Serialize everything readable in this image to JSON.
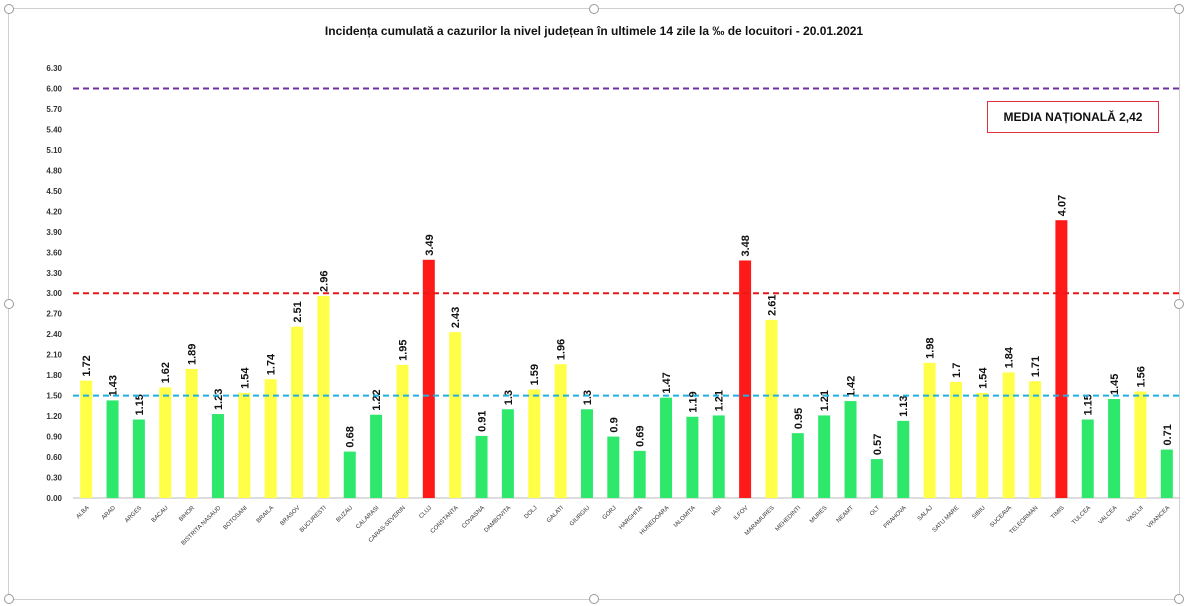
{
  "chart_data": {
    "type": "bar",
    "title": "Incidența cumulată a cazurilor la nivel județean în ultimele 14 zile la ‰ de locuitori - 20.01.2021",
    "xlabel": "",
    "ylabel": "",
    "ylim": [
      0,
      6.3
    ],
    "ytick_step": 0.3,
    "grid": false,
    "categories": [
      "ALBA",
      "ARAD",
      "ARGES",
      "BACAU",
      "BIHOR",
      "BISTRITA NASAUD",
      "BOTOSANI",
      "BRAILA",
      "BRASOV",
      "BUCURESTI",
      "BUZAU",
      "CALARASI",
      "CARAS-SEVERIN",
      "CLUJ",
      "CONSTANTA",
      "COVASNA",
      "DAMBOVITA",
      "DOLJ",
      "GALATI",
      "GIURGIU",
      "GORJ",
      "HARGHITA",
      "HUNEDOARA",
      "IALOMITA",
      "IASI",
      "ILFOV",
      "MARAMURES",
      "MEHEDINTI",
      "MURES",
      "NEAMT",
      "OLT",
      "PRAHOVA",
      "SALAJ",
      "SATU MARE",
      "SIBIU",
      "SUCEAVA",
      "TELEORMAN",
      "TIMIS",
      "TULCEA",
      "VALCEA",
      "VASLUI",
      "VRANCEA"
    ],
    "values": [
      1.72,
      1.43,
      1.15,
      1.62,
      1.89,
      1.23,
      1.54,
      1.74,
      2.51,
      2.96,
      0.68,
      1.22,
      1.95,
      3.49,
      2.43,
      0.91,
      1.3,
      1.59,
      1.96,
      1.3,
      0.9,
      0.69,
      1.47,
      1.19,
      1.21,
      3.48,
      2.61,
      0.95,
      1.21,
      1.42,
      0.57,
      1.13,
      1.98,
      1.7,
      1.54,
      1.84,
      1.71,
      4.07,
      1.15,
      1.45,
      1.56,
      0.71
    ],
    "data_labels": [
      "1.72",
      "1.43",
      "1.15",
      "1.62",
      "1.89",
      "1.23",
      "1.54",
      "1.74",
      "2.51",
      "2.96",
      "0.68",
      "1.22",
      "1.95",
      "3.49",
      "2.43",
      "0.91",
      "1.3",
      "1.59",
      "1.96",
      "1.3",
      "0.9",
      "0.69",
      "1.47",
      "1.19",
      "1.21",
      "3.48",
      "2.61",
      "0.95",
      "1.21",
      "1.42",
      "0.57",
      "1.13",
      "1.98",
      "1.7",
      "1.54",
      "1.84",
      "1.71",
      "4.07",
      "1.15",
      "1.45",
      "1.56",
      "0.71"
    ],
    "color_thresholds": {
      "green_below": 1.5,
      "red_above": 3.0
    },
    "colors": {
      "green": "#2ee86c",
      "yellow": "#ffff47",
      "red": "#ff1a1a"
    },
    "reference_lines": [
      {
        "value": 6.0,
        "color": "#7030a0"
      },
      {
        "value": 3.0,
        "color": "#e81818"
      },
      {
        "value": 1.5,
        "color": "#1fb0e0"
      }
    ],
    "legend": {
      "text": "MEDIA NAȚIONALĂ 2,42",
      "placement": "top-right",
      "border_color": "#e03040"
    }
  }
}
